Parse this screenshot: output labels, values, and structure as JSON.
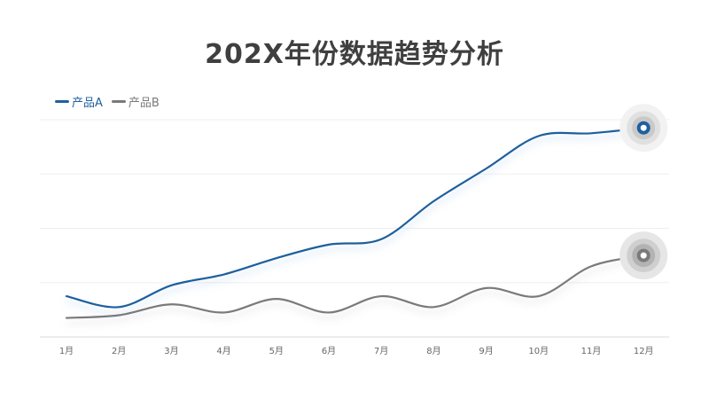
{
  "title": "202X年份数据趋势分析",
  "chart_data": {
    "type": "line",
    "title": "202X年份数据趋势分析",
    "categories": [
      "1月",
      "2月",
      "3月",
      "4月",
      "5月",
      "6月",
      "7月",
      "8月",
      "9月",
      "10月",
      "11月",
      "12月"
    ],
    "series": [
      {
        "name": "产品A",
        "color": "#1f5f9e",
        "values": [
          7.5,
          5.5,
          9.5,
          11.5,
          14.5,
          17,
          18,
          25,
          31,
          37,
          37.5,
          38.5
        ]
      },
      {
        "name": "产品B",
        "color": "#7a7a7a",
        "values": [
          3.5,
          4,
          6,
          4.5,
          7,
          4.5,
          7.5,
          5.5,
          9,
          7.5,
          13,
          15
        ]
      }
    ],
    "xlabel": "",
    "ylabel": "",
    "ylim": [
      0,
      40
    ],
    "grid": true,
    "legend": "top-left"
  }
}
